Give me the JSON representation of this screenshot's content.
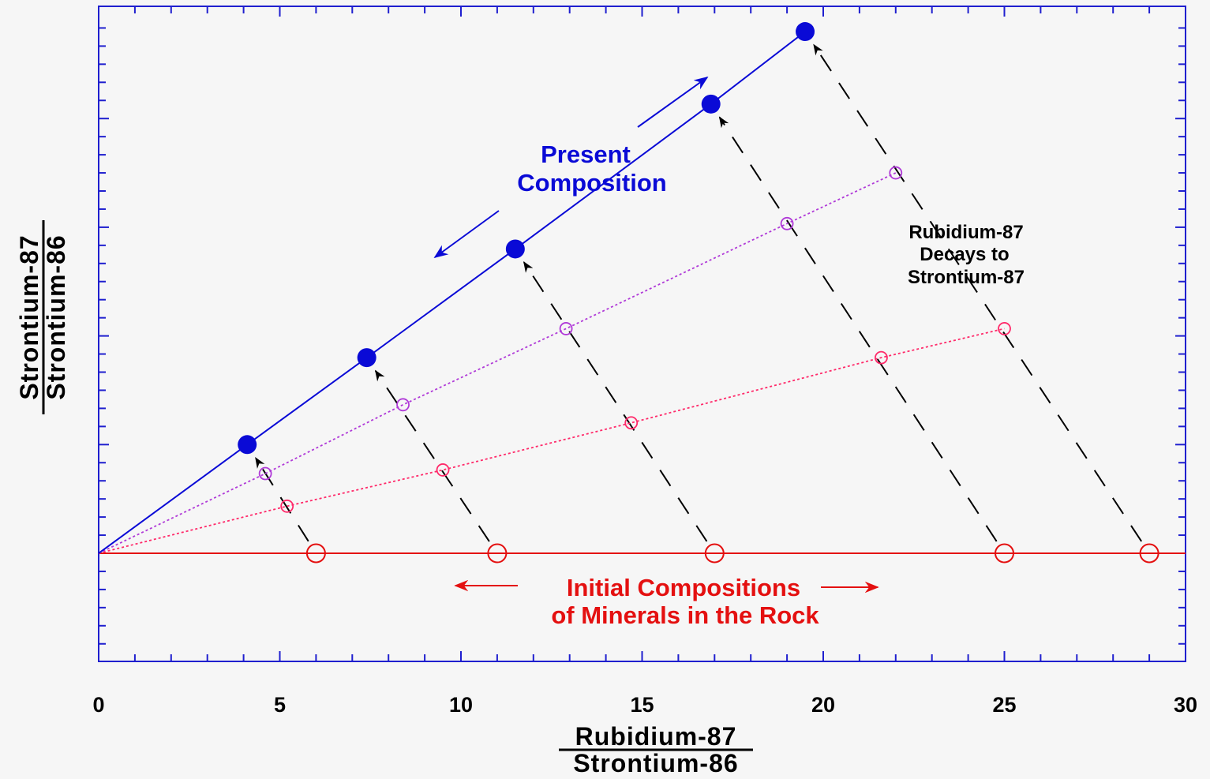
{
  "chart_data": {
    "type": "scatter",
    "title": "",
    "xlabel_numerator": "Rubidium-87",
    "xlabel_denominator": "Strontium-86",
    "ylabel_numerator": "Strontium-87",
    "ylabel_denominator": "Strontium-86",
    "xlim": [
      0,
      30
    ],
    "ylim": [
      -3,
      15
    ],
    "x_ticks": [
      0,
      5,
      10,
      15,
      20,
      25,
      30
    ],
    "y_tick_labels_shown": false,
    "grid": false,
    "series": [
      {
        "role": "initial",
        "color": "#e41010",
        "marker": "open-circle-large",
        "line": "solid",
        "points": [
          [
            0,
            0
          ],
          [
            6,
            0
          ],
          [
            11,
            0
          ],
          [
            17,
            0
          ],
          [
            25,
            0
          ],
          [
            29,
            0
          ]
        ]
      },
      {
        "role": "intermediate-1",
        "color": "#ff2a6a",
        "marker": "open-circle-small",
        "line": "dotted",
        "points": [
          [
            0,
            0
          ],
          [
            5.2,
            1.3
          ],
          [
            9.5,
            2.3
          ],
          [
            14.7,
            3.6
          ],
          [
            21.6,
            5.4
          ],
          [
            25,
            6.2
          ]
        ]
      },
      {
        "role": "intermediate-2",
        "color": "#b03ad8",
        "marker": "open-circle-small",
        "line": "dotted",
        "points": [
          [
            0,
            0
          ],
          [
            4.6,
            2.2
          ],
          [
            8.4,
            4.1
          ],
          [
            12.9,
            6.2
          ],
          [
            19.0,
            9.1
          ],
          [
            22.0,
            10.5
          ]
        ]
      },
      {
        "role": "present",
        "color": "#0a0ad6",
        "marker": "filled-circle",
        "line": "solid",
        "points": [
          [
            0,
            0
          ],
          [
            4.1,
            3.0
          ],
          [
            7.4,
            5.4
          ],
          [
            11.5,
            8.4
          ],
          [
            16.9,
            12.4
          ],
          [
            19.5,
            14.4
          ]
        ]
      }
    ],
    "decay_paths": [
      {
        "from": [
          6,
          0
        ],
        "to": [
          4.1,
          3.0
        ]
      },
      {
        "from": [
          11,
          0
        ],
        "to": [
          7.4,
          5.4
        ]
      },
      {
        "from": [
          17,
          0
        ],
        "to": [
          11.5,
          8.4
        ]
      },
      {
        "from": [
          25,
          0
        ],
        "to": [
          16.9,
          12.4
        ]
      },
      {
        "from": [
          29,
          0
        ],
        "to": [
          19.5,
          14.4
        ]
      }
    ],
    "annotations": {
      "present_composition": [
        "Present",
        "Composition"
      ],
      "decay_note": [
        "Rubidium-87",
        "Decays to",
        "Strontium-87"
      ],
      "initial_compositions": [
        "Initial Compositions",
        "of Minerals in the Rock"
      ]
    },
    "colors": {
      "present": "#0a0ad6",
      "initial": "#e41010",
      "decay_arrows": "#000000",
      "frame": "#1f1fcf",
      "background": "#f6f6f6"
    }
  }
}
